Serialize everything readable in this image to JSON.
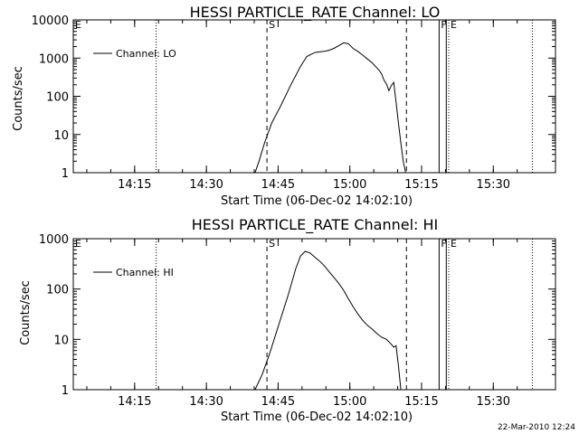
{
  "chart_data": [
    {
      "type": "line",
      "title": "HESSI PARTICLE_RATE Channel: LO",
      "xlabel": "Start Time (06-Dec-02 14:02:10)",
      "ylabel": "Counts/sec",
      "y_scale": "log",
      "xlim": [
        "14:02:10",
        "15:43:00"
      ],
      "ylim": [
        1,
        10000
      ],
      "x_ticks": [
        "14:15",
        "14:30",
        "14:45",
        "15:00",
        "15:15",
        "15:30"
      ],
      "y_ticks": [
        "1",
        "10",
        "100",
        "1000",
        "10000"
      ],
      "grid": false,
      "legend": {
        "position": "top-left",
        "entries": [
          "Channel: LO"
        ]
      },
      "vertical_markers": [
        {
          "time": "14:02:10",
          "style": "dotted",
          "label": "E"
        },
        {
          "time": "14:19:30",
          "style": "dotted",
          "label": ""
        },
        {
          "time": "14:42:40",
          "style": "dashed",
          "label": "S"
        },
        {
          "time": "15:11:50",
          "style": "dashed",
          "label": ""
        },
        {
          "time": "15:18:40",
          "style": "solid",
          "label": "F"
        },
        {
          "time": "15:20:10",
          "style": "solid",
          "label": ""
        },
        {
          "time": "15:20:40",
          "style": "dotted",
          "label": "E"
        },
        {
          "time": "15:38:10",
          "style": "dotted",
          "label": ""
        }
      ],
      "series": [
        {
          "name": "Channel: LO",
          "x": [
            "14:40:10",
            "14:41:00",
            "14:42:10",
            "14:43:40",
            "14:45:40",
            "14:47:40",
            "14:49:40",
            "14:51:00",
            "14:52:40",
            "14:53:40",
            "14:54:40",
            "14:55:40",
            "14:56:40",
            "14:57:40",
            "14:58:40",
            "14:59:40",
            "15:00:40",
            "15:01:40",
            "15:02:40",
            "15:03:40",
            "15:04:40",
            "15:05:40",
            "15:06:10",
            "15:06:40",
            "15:07:10",
            "15:07:40",
            "15:08:10",
            "15:08:40",
            "15:09:10",
            "15:09:40",
            "15:10:10",
            "15:10:40",
            "15:11:10",
            "15:11:40"
          ],
          "y": [
            1,
            2,
            6,
            20,
            60,
            200,
            600,
            1100,
            1400,
            1450,
            1500,
            1600,
            1800,
            2100,
            2500,
            2400,
            1800,
            1500,
            1200,
            950,
            750,
            550,
            470,
            380,
            260,
            210,
            140,
            190,
            230,
            70,
            20,
            6,
            2,
            1
          ]
        }
      ]
    },
    {
      "type": "line",
      "title": "HESSI PARTICLE_RATE Channel: HI",
      "xlabel": "Start Time (06-Dec-02 14:02:10)",
      "ylabel": "Counts/sec",
      "y_scale": "log",
      "xlim": [
        "14:02:10",
        "15:43:00"
      ],
      "ylim": [
        1,
        1000
      ],
      "x_ticks": [
        "14:15",
        "14:30",
        "14:45",
        "15:00",
        "15:15",
        "15:30"
      ],
      "y_ticks": [
        "1",
        "10",
        "100",
        "1000"
      ],
      "grid": false,
      "legend": {
        "position": "top-left",
        "entries": [
          "Channel: HI"
        ]
      },
      "vertical_markers": [
        {
          "time": "14:02:10",
          "style": "dotted",
          "label": "E"
        },
        {
          "time": "14:19:30",
          "style": "dotted",
          "label": ""
        },
        {
          "time": "14:42:40",
          "style": "dashed",
          "label": "S"
        },
        {
          "time": "15:11:50",
          "style": "dashed",
          "label": ""
        },
        {
          "time": "15:18:40",
          "style": "solid",
          "label": "F"
        },
        {
          "time": "15:20:10",
          "style": "solid",
          "label": ""
        },
        {
          "time": "15:20:40",
          "style": "dotted",
          "label": "E"
        },
        {
          "time": "15:38:10",
          "style": "dotted",
          "label": ""
        }
      ],
      "series": [
        {
          "name": "Channel: HI",
          "x": [
            "14:40:10",
            "14:41:40",
            "14:43:10",
            "14:45:10",
            "14:47:10",
            "14:48:40",
            "14:49:40",
            "14:50:40",
            "14:51:40",
            "14:52:40",
            "14:53:40",
            "14:54:40",
            "14:55:40",
            "14:56:40",
            "14:57:40",
            "14:58:40",
            "14:59:40",
            "15:00:40",
            "15:01:40",
            "15:02:40",
            "15:03:40",
            "15:04:40",
            "15:05:40",
            "15:06:40",
            "15:07:40",
            "15:08:40",
            "15:09:10",
            "15:09:40",
            "15:10:10",
            "15:10:40"
          ],
          "y": [
            1,
            2,
            5,
            20,
            80,
            250,
            450,
            560,
            520,
            430,
            360,
            290,
            220,
            170,
            130,
            95,
            65,
            45,
            32,
            24,
            19,
            16,
            13,
            11,
            10,
            8,
            7,
            7.5,
            3,
            1
          ]
        }
      ]
    }
  ],
  "timestamp": "22-Mar-2010 12:24"
}
